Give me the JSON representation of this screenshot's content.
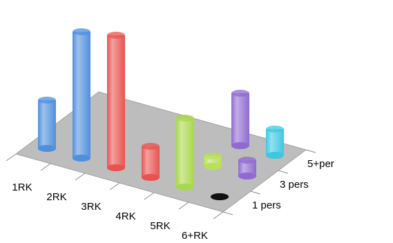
{
  "chart_data": {
    "type": "bar3d",
    "categories": [
      "1RK",
      "2RK",
      "3RK",
      "4RK",
      "5RK",
      "6+RK"
    ],
    "series": [
      {
        "name": "1 pers",
        "values": [
          70,
          183,
          192,
          45,
          100,
          0
        ],
        "colors": [
          "#4f8fdc",
          "#4f8fdc",
          "#e8534f",
          "#e8534f",
          "#a8d84a",
          "#111111"
        ]
      },
      {
        "name": "3 pers",
        "values": [
          null,
          null,
          null,
          null,
          15,
          23
        ],
        "colors": [
          null,
          null,
          null,
          null,
          "#b8e05a",
          "#8f6ad0"
        ]
      },
      {
        "name": "5+per",
        "values": [
          null,
          null,
          null,
          null,
          76,
          38
        ],
        "colors": [
          null,
          null,
          null,
          null,
          "#8f6ad0",
          "#3cc8e0"
        ]
      }
    ]
  }
}
